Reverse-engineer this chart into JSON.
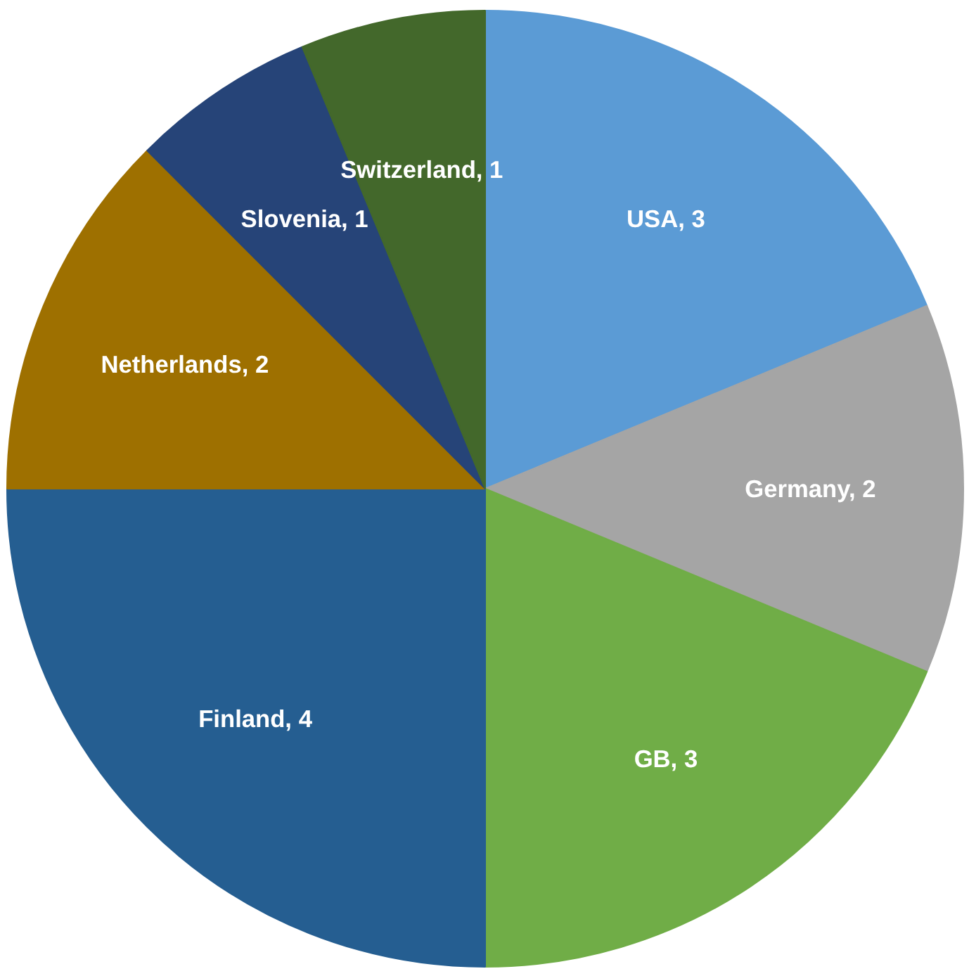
{
  "chart_data": {
    "type": "pie",
    "categories": [
      "USA, 3",
      "Germany, 2",
      "GB, 3",
      "Finland, 4",
      "Netherlands, 2",
      "Slovenia, 1",
      "Switzerland, 1"
    ],
    "values": [
      3,
      2,
      3,
      4,
      2,
      1,
      1
    ],
    "colors": [
      "#5b9bd5",
      "#a5a5a5",
      "#70ad47",
      "#255e91",
      "#9e7000",
      "#264478",
      "#43682b"
    ]
  }
}
